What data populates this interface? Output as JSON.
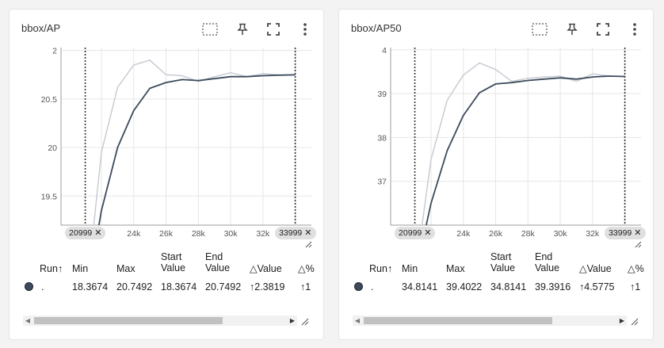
{
  "colors": {
    "smoothed": "#3c4a5c",
    "raw": "#c8ccd4",
    "grid": "#e6e6e6",
    "accent": "#3c4a5c"
  },
  "toolbar_icons": [
    "fit-domain-icon",
    "pin-icon",
    "fullscreen-icon",
    "more-vert-icon"
  ],
  "cards": [
    {
      "title": "bbox/AP",
      "range_start": "20999",
      "range_end": "33999",
      "table": {
        "headers": [
          "Run",
          "Min",
          "Max",
          "Start Value",
          "End Value",
          "Value",
          "%"
        ],
        "sort_indicator": "↑",
        "delta_symbol": "△",
        "row": {
          "run": ".",
          "min": "18.3674",
          "max": "20.7492",
          "start_value": "18.3674",
          "end_value": "20.7492",
          "delta_value": "2.3819",
          "delta_pct": "1"
        }
      },
      "chart_data": {
        "type": "line",
        "x_ticks": [
          "k",
          "24k",
          "26k",
          "28k",
          "30k",
          "32k",
          "3"
        ],
        "y_ticks": [
          "19.5",
          "20",
          "20.5",
          "2"
        ],
        "xlim": [
          19500,
          35000
        ],
        "ylim": [
          19.2,
          21.03
        ],
        "y_tick_values": [
          19.5,
          20,
          20.5,
          21
        ],
        "x_tick_values": [
          22000,
          24000,
          26000,
          28000,
          30000,
          32000,
          34000
        ],
        "range_markers": [
          20999,
          33999
        ],
        "series": [
          {
            "role": "smoothed",
            "x": [
              21000,
              22000,
              23000,
              24000,
              25000,
              26000,
              27000,
              28000,
              29000,
              30000,
              31000,
              32000,
              33000,
              34000
            ],
            "y": [
              18.37,
              19.35,
              20.0,
              20.38,
              20.61,
              20.67,
              20.7,
              20.69,
              20.71,
              20.73,
              20.73,
              20.74,
              20.745,
              20.749
            ]
          },
          {
            "role": "raw",
            "x": [
              21000,
              22000,
              23000,
              24000,
              25000,
              26000,
              27000,
              28000,
              29000,
              30000,
              31000,
              32000,
              33000,
              34000
            ],
            "y": [
              18.37,
              19.95,
              20.62,
              20.85,
              20.9,
              20.75,
              20.74,
              20.68,
              20.73,
              20.77,
              20.73,
              20.76,
              20.75,
              20.749
            ]
          }
        ]
      }
    },
    {
      "title": "bbox/AP50",
      "range_start": "20999",
      "range_end": "33999",
      "table": {
        "headers": [
          "Run",
          "Min",
          "Max",
          "Start Value",
          "End Value",
          "Value",
          "%"
        ],
        "sort_indicator": "↑",
        "delta_symbol": "△",
        "row": {
          "run": ".",
          "min": "34.8141",
          "max": "39.4022",
          "start_value": "34.8141",
          "end_value": "39.3916",
          "delta_value": "4.5775",
          "delta_pct": "1"
        }
      },
      "chart_data": {
        "type": "line",
        "x_ticks": [
          "k",
          "24k",
          "26k",
          "28k",
          "30k",
          "32k",
          "3"
        ],
        "y_ticks": [
          "37",
          "38",
          "39",
          "4"
        ],
        "xlim": [
          19500,
          35000
        ],
        "ylim": [
          36.0,
          40.05
        ],
        "y_tick_values": [
          37,
          38,
          39,
          40
        ],
        "x_tick_values": [
          22000,
          24000,
          26000,
          28000,
          30000,
          32000,
          34000
        ],
        "range_markers": [
          20999,
          33999
        ],
        "series": [
          {
            "role": "smoothed",
            "x": [
              21000,
              22000,
              23000,
              24000,
              25000,
              26000,
              27000,
              28000,
              29000,
              30000,
              31000,
              32000,
              33000,
              34000
            ],
            "y": [
              34.81,
              36.5,
              37.7,
              38.5,
              39.02,
              39.22,
              39.25,
              39.3,
              39.33,
              39.36,
              39.33,
              39.38,
              39.4,
              39.39
            ]
          },
          {
            "role": "raw",
            "x": [
              21000,
              22000,
              23000,
              24000,
              25000,
              26000,
              27000,
              28000,
              29000,
              30000,
              31000,
              32000,
              33000,
              34000
            ],
            "y": [
              34.81,
              37.5,
              38.85,
              39.42,
              39.7,
              39.55,
              39.28,
              39.35,
              39.38,
              39.4,
              39.28,
              39.45,
              39.4,
              39.39
            ]
          }
        ]
      }
    }
  ]
}
